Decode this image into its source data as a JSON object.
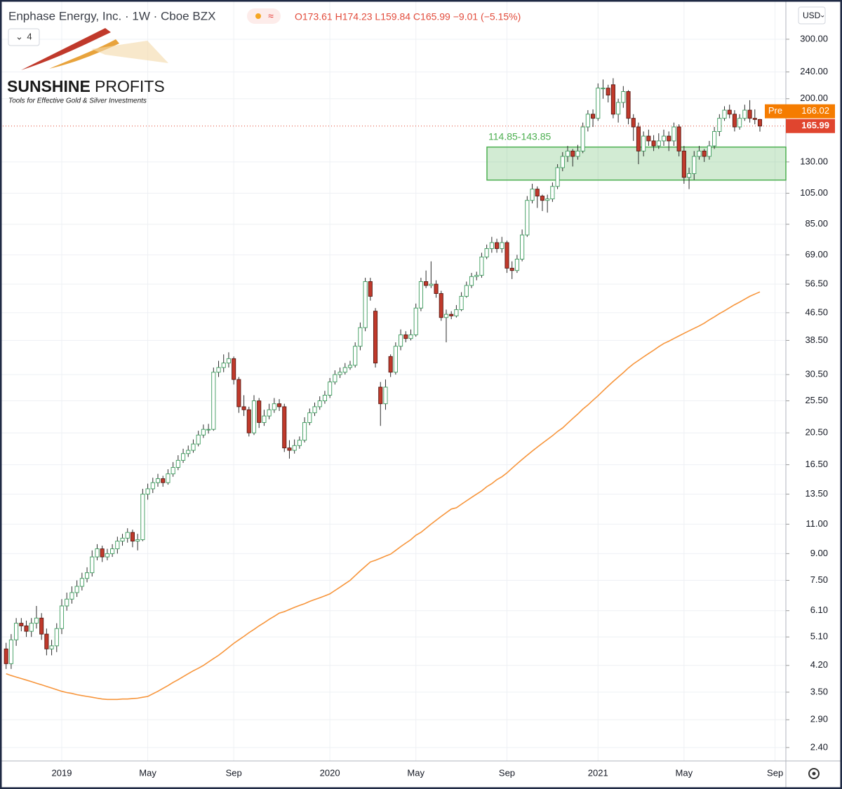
{
  "chart_data": {
    "type": "candlestick",
    "title": "Enphase Energy, Inc. · 1W · Cboe BZX",
    "ohlc_legend": "O173.61 H174.23 L159.84 C165.99 −9.01 (−5.15%)",
    "indicator_count": 4,
    "currency": "USD",
    "logo": {
      "name_bold": "SUNSHINE",
      "name_light": "PROFITS",
      "tagline": "Tools for Effective Gold & Silver Investments"
    },
    "log_scale": true,
    "grid": true,
    "up_color": "#3a9a5b",
    "down_color": "#c0392b",
    "ylim": [
      2.19,
      392
    ],
    "yticks": [
      {
        "value": 300,
        "label": "300.00"
      },
      {
        "value": 240,
        "label": "240.00"
      },
      {
        "value": 200,
        "label": "200.00"
      },
      {
        "value": 130,
        "label": "130.00"
      },
      {
        "value": 105,
        "label": "105.00"
      },
      {
        "value": 85,
        "label": "85.00"
      },
      {
        "value": 69,
        "label": "69.00"
      },
      {
        "value": 56.5,
        "label": "56.50"
      },
      {
        "value": 46.5,
        "label": "46.50"
      },
      {
        "value": 38.5,
        "label": "38.50"
      },
      {
        "value": 30.5,
        "label": "30.50"
      },
      {
        "value": 25.5,
        "label": "25.50"
      },
      {
        "value": 20.5,
        "label": "20.50"
      },
      {
        "value": 16.5,
        "label": "16.50"
      },
      {
        "value": 13.5,
        "label": "13.50"
      },
      {
        "value": 11,
        "label": "11.00"
      },
      {
        "value": 9,
        "label": "9.00"
      },
      {
        "value": 7.5,
        "label": "7.50"
      },
      {
        "value": 6.1,
        "label": "6.10"
      },
      {
        "value": 5.1,
        "label": "5.10"
      },
      {
        "value": 4.2,
        "label": "4.20"
      },
      {
        "value": 3.5,
        "label": "3.50"
      },
      {
        "value": 2.9,
        "label": "2.90"
      },
      {
        "value": 2.4,
        "label": "2.40"
      }
    ],
    "categories": [
      null,
      null,
      null,
      null,
      null,
      null,
      null,
      null,
      null,
      null,
      null,
      "2019",
      null,
      null,
      null,
      null,
      null,
      null,
      null,
      null,
      null,
      null,
      null,
      null,
      null,
      null,
      null,
      null,
      "May",
      null,
      null,
      null,
      null,
      null,
      null,
      null,
      null,
      null,
      null,
      null,
      null,
      null,
      null,
      null,
      null,
      "Sep",
      null,
      null,
      null,
      null,
      null,
      null,
      null,
      null,
      null,
      null,
      null,
      null,
      null,
      null,
      null,
      null,
      null,
      null,
      "2020",
      null,
      null,
      null,
      null,
      null,
      null,
      null,
      null,
      null,
      null,
      null,
      null,
      null,
      null,
      null,
      null,
      "May",
      null,
      null,
      null,
      null,
      null,
      null,
      null,
      null,
      null,
      null,
      null,
      null,
      null,
      null,
      null,
      null,
      null,
      "Sep",
      null,
      null,
      null,
      null,
      null,
      null,
      null,
      null,
      null,
      null,
      null,
      null,
      null,
      null,
      null,
      null,
      null,
      "2021",
      null,
      null,
      null,
      null,
      null,
      null,
      null,
      null,
      null,
      null,
      null,
      null,
      null,
      null,
      null,
      null,
      "May",
      null,
      null,
      null,
      null,
      null,
      null,
      null,
      null,
      null,
      null,
      null,
      null,
      null,
      null,
      null,
      null,
      null,
      "Sep"
    ],
    "open": [
      4.7,
      4.25,
      5.0,
      5.6,
      5.5,
      5.3,
      5.6,
      5.8,
      5.2,
      4.7,
      4.8,
      5.4,
      6.3,
      6.6,
      6.9,
      7.2,
      7.6,
      7.9,
      8.8,
      9.3,
      8.8,
      9.0,
      9.3,
      9.8,
      10.0,
      10.4,
      9.8,
      9.9,
      13.5,
      14.0,
      14.6,
      15.0,
      14.6,
      15.5,
      16.2,
      17.0,
      17.8,
      18.2,
      19.0,
      20.2,
      21.0,
      21.0,
      31.0,
      32.0,
      33.0,
      34.0,
      29.5,
      24.5,
      24.0,
      20.5,
      25.5,
      22.0,
      23.0,
      24.0,
      25.0,
      24.5,
      18.5,
      18.2,
      18.8,
      19.5,
      22.0,
      23.5,
      24.5,
      25.5,
      26.5,
      29.0,
      30.5,
      31.0,
      32.0,
      32.5,
      37.0,
      42.0,
      57.5,
      47.0,
      28.0,
      25.0,
      34.5,
      31.0,
      37.0,
      40.0,
      39.0,
      40.0,
      48.0,
      57.5,
      56.0,
      56.5,
      53.0,
      45.0,
      46.0,
      45.5,
      47.5,
      52.0,
      56.0,
      59.5,
      60.0,
      68.0,
      72.0,
      75.0,
      72.0,
      75.0,
      63.0,
      62.0,
      67.0,
      79.0,
      100,
      108,
      103,
      100,
      101,
      110,
      125,
      135,
      140,
      135,
      140,
      165,
      180,
      175,
      215,
      215,
      220,
      180,
      195,
      210,
      175,
      165,
      140,
      155,
      150,
      145,
      150,
      155,
      150,
      165,
      140,
      117,
      120,
      135,
      140,
      135,
      145,
      160,
      175,
      185,
      180,
      165,
      175,
      185,
      175,
      173.61,
      null,
      null,
      null
    ],
    "high": [
      4.9,
      5.2,
      5.8,
      5.8,
      5.7,
      5.8,
      6.3,
      6.0,
      5.4,
      5.0,
      5.6,
      6.6,
      6.9,
      7.2,
      7.5,
      7.9,
      8.2,
      9.2,
      9.6,
      9.5,
      9.3,
      9.6,
      10.1,
      10.3,
      10.7,
      10.6,
      10.3,
      14.0,
      14.5,
      15.1,
      15.5,
      15.3,
      16.0,
      16.8,
      17.6,
      18.4,
      18.8,
      19.6,
      20.8,
      21.7,
      21.8,
      32.0,
      33.5,
      35.0,
      35.5,
      34.5,
      30.0,
      26.5,
      24.5,
      26.5,
      26.0,
      24.0,
      25.0,
      26.0,
      25.8,
      25.0,
      19.5,
      19.6,
      20.0,
      22.8,
      24.2,
      25.2,
      26.3,
      27.3,
      29.8,
      31.4,
      32.0,
      33.0,
      33.5,
      38.0,
      43.5,
      59.0,
      59.0,
      48.0,
      29.0,
      29.5,
      35.0,
      38.0,
      41.5,
      41.0,
      41.5,
      49.5,
      59.0,
      62.0,
      66.0,
      58.0,
      54.0,
      47.5,
      47.0,
      49.0,
      53.5,
      57.5,
      61.0,
      61.5,
      70.0,
      74.0,
      78.0,
      77.0,
      78.0,
      76.0,
      66.0,
      69.0,
      82.0,
      103,
      112,
      110,
      104,
      104,
      113,
      128,
      139,
      145,
      142,
      146,
      170,
      185,
      186,
      222,
      228,
      220,
      230,
      200,
      218,
      212,
      180,
      170,
      160,
      162,
      156,
      158,
      162,
      160,
      170,
      168,
      145,
      125,
      140,
      145,
      142,
      150,
      165,
      180,
      190,
      192,
      185,
      180,
      192,
      198,
      186,
      174.23,
      null,
      null,
      null
    ],
    "low": [
      4.1,
      4.1,
      4.8,
      5.3,
      5.1,
      5.1,
      5.4,
      5.0,
      4.5,
      4.5,
      4.6,
      5.2,
      6.1,
      6.4,
      6.7,
      7.0,
      7.4,
      7.7,
      8.6,
      8.5,
      8.6,
      8.8,
      9.0,
      9.5,
      9.7,
      9.4,
      9.2,
      9.8,
      13.0,
      13.6,
      14.2,
      14.2,
      14.4,
      15.2,
      15.9,
      16.7,
      17.4,
      17.9,
      18.7,
      19.8,
      20.4,
      20.8,
      30.0,
      31.0,
      32.0,
      28.5,
      23.5,
      23.0,
      20.0,
      20.2,
      21.2,
      21.5,
      22.5,
      23.5,
      23.8,
      18.0,
      17.2,
      17.8,
      18.4,
      19.2,
      21.6,
      23.0,
      24.0,
      25.0,
      26.0,
      28.5,
      29.8,
      30.5,
      31.5,
      32.0,
      36.0,
      41.0,
      50.5,
      32.0,
      21.5,
      24.0,
      30.0,
      30.5,
      36.0,
      38.0,
      38.5,
      39.5,
      47.0,
      55.0,
      55.0,
      51.5,
      44.0,
      38.0,
      44.5,
      45.0,
      47.0,
      51.5,
      55.0,
      58.0,
      59.0,
      67.0,
      70.0,
      70.0,
      70.0,
      61.0,
      58.5,
      61.0,
      66.0,
      78.0,
      98,
      95,
      93,
      92,
      99,
      108,
      122,
      130,
      126,
      132,
      138,
      160,
      165,
      172,
      200,
      195,
      175,
      170,
      188,
      168,
      150,
      128,
      135,
      145,
      140,
      142,
      145,
      140,
      145,
      135,
      112,
      108,
      115,
      132,
      130,
      132,
      142,
      155,
      172,
      175,
      160,
      162,
      172,
      170,
      168,
      159.84,
      null,
      null,
      null
    ],
    "close": [
      4.25,
      5.0,
      5.6,
      5.5,
      5.3,
      5.6,
      5.8,
      5.2,
      4.7,
      4.8,
      5.4,
      6.3,
      6.6,
      6.9,
      7.2,
      7.6,
      7.9,
      8.8,
      9.3,
      8.8,
      9.0,
      9.3,
      9.8,
      10.0,
      10.4,
      9.8,
      9.9,
      13.5,
      14.0,
      14.6,
      15.0,
      14.6,
      15.5,
      16.2,
      17.0,
      17.8,
      18.2,
      19.0,
      20.2,
      21.0,
      21.0,
      31.0,
      32.0,
      33.0,
      34.0,
      29.5,
      24.5,
      24.0,
      20.5,
      25.5,
      22.0,
      23.0,
      24.0,
      25.0,
      24.5,
      18.5,
      18.2,
      18.8,
      19.5,
      22.0,
      23.5,
      24.5,
      25.5,
      26.5,
      29.0,
      30.5,
      31.0,
      32.0,
      32.5,
      37.0,
      42.0,
      57.5,
      52.0,
      33.0,
      25.0,
      28.0,
      31.0,
      37.0,
      40.0,
      39.0,
      40.0,
      48.0,
      57.5,
      56.0,
      56.5,
      53.0,
      45.0,
      46.0,
      45.5,
      47.5,
      52.0,
      56.0,
      59.5,
      60.0,
      68.0,
      72.0,
      75.0,
      72.0,
      75.0,
      63.0,
      62.0,
      67.0,
      79.0,
      100,
      108,
      103,
      100,
      101,
      110,
      125,
      135,
      140,
      135,
      140,
      165,
      180,
      175,
      215,
      215,
      205,
      180,
      195,
      210,
      175,
      165,
      140,
      155,
      150,
      145,
      150,
      155,
      150,
      165,
      140,
      117,
      120,
      135,
      140,
      135,
      145,
      160,
      175,
      185,
      180,
      165,
      175,
      185,
      175,
      173.61,
      165.99,
      null,
      null,
      null
    ],
    "moving_average": {
      "color": "#f7953b",
      "values": [
        3.97,
        3.92,
        3.88,
        3.84,
        3.8,
        3.76,
        3.72,
        3.68,
        3.64,
        3.6,
        3.56,
        3.52,
        3.49,
        3.47,
        3.44,
        3.42,
        3.4,
        3.38,
        3.36,
        3.34,
        3.33,
        3.33,
        3.33,
        3.34,
        3.34,
        3.35,
        3.36,
        3.38,
        3.4,
        3.46,
        3.52,
        3.59,
        3.66,
        3.74,
        3.81,
        3.89,
        3.97,
        4.05,
        4.12,
        4.2,
        4.3,
        4.4,
        4.5,
        4.62,
        4.75,
        4.88,
        5.0,
        5.12,
        5.25,
        5.37,
        5.5,
        5.62,
        5.75,
        5.87,
        6.0,
        6.06,
        6.15,
        6.24,
        6.32,
        6.4,
        6.5,
        6.58,
        6.66,
        6.75,
        6.84,
        7.0,
        7.16,
        7.33,
        7.5,
        7.75,
        8.0,
        8.25,
        8.5,
        8.6,
        8.72,
        8.85,
        8.97,
        9.2,
        9.44,
        9.67,
        9.9,
        10.2,
        10.4,
        10.7,
        11.0,
        11.3,
        11.6,
        11.9,
        12.2,
        12.3,
        12.6,
        12.9,
        13.2,
        13.5,
        13.8,
        14.2,
        14.5,
        14.9,
        15.2,
        15.6,
        16.1,
        16.6,
        17.1,
        17.6,
        18.1,
        18.6,
        19.1,
        19.6,
        20.1,
        20.7,
        21.2,
        21.9,
        22.6,
        23.3,
        24.1,
        24.8,
        25.6,
        26.4,
        27.3,
        28.2,
        29.1,
        30.0,
        30.9,
        31.9,
        32.8,
        33.6,
        34.4,
        35.2,
        36.0,
        36.9,
        37.7,
        38.3,
        39.0,
        39.7,
        40.4,
        41.1,
        41.8,
        42.5,
        43.3,
        44.3,
        45.2,
        46.2,
        47.1,
        48.1,
        49.1,
        50.0,
        51.0,
        52.0,
        52.8,
        53.6,
        null,
        null,
        null
      ]
    },
    "zone": {
      "label": "114.85-143.85",
      "low": 114.85,
      "high": 143.85,
      "color": "#4caf50"
    },
    "pre_label": "Pre",
    "pre_price": 166.02,
    "pre_color": "#f57c00",
    "last_price": 165.99,
    "last_color": "#e0452f"
  }
}
